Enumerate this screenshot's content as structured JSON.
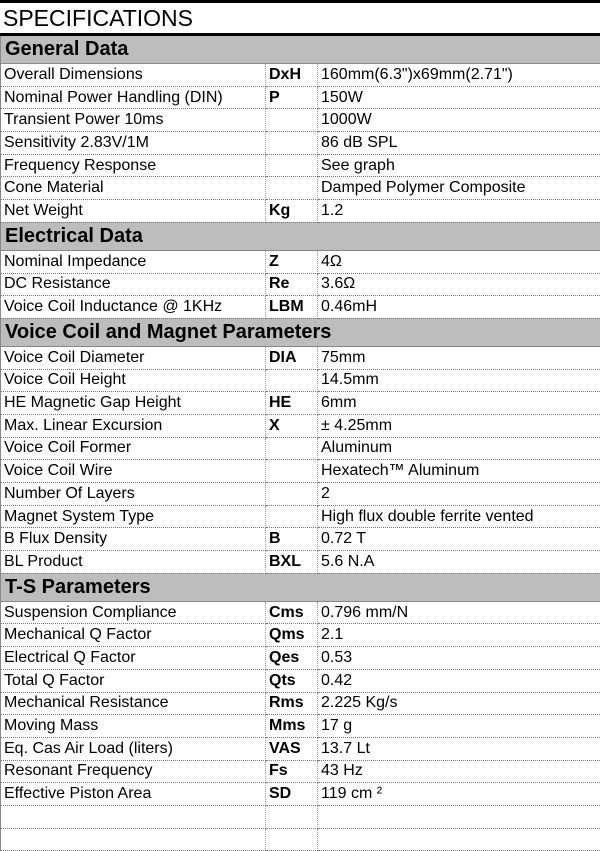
{
  "title": "SPECIFICATIONS",
  "sections": [
    {
      "heading": "General Data",
      "rows": [
        [
          "Overall Dimensions",
          "DxH",
          "160mm(6.3\")x69mm(2.71\")"
        ],
        [
          "Nominal Power Handling (DIN)",
          "P",
          "150W"
        ],
        [
          "Transient Power 10ms",
          "",
          "1000W"
        ],
        [
          "Sensitivity 2.83V/1M",
          "",
          "86 dB SPL"
        ],
        [
          "Frequency Response",
          "",
          "See graph"
        ],
        [
          "Cone Material",
          "",
          "Damped Polymer Composite"
        ],
        [
          "Net Weight",
          "Kg",
          "1.2"
        ]
      ]
    },
    {
      "heading": "Electrical Data",
      "rows": [
        [
          "Nominal Impedance",
          "Z",
          "4Ω"
        ],
        [
          "DC Resistance",
          "Re",
          "3.6Ω"
        ],
        [
          "Voice Coil Inductance @ 1KHz",
          "LBM",
          "0.46mH"
        ]
      ]
    },
    {
      "heading": "Voice Coil and Magnet Parameters",
      "rows": [
        [
          "Voice Coil Diameter",
          "DIA",
          "75mm"
        ],
        [
          "Voice Coil Height",
          "",
          "14.5mm"
        ],
        [
          "HE Magnetic Gap Height",
          "HE",
          "6mm"
        ],
        [
          "Max. Linear Excursion",
          "X",
          "± 4.25mm"
        ],
        [
          "Voice Coil Former",
          "",
          "Aluminum"
        ],
        [
          "Voice Coil Wire",
          "",
          "Hexatech™ Aluminum"
        ],
        [
          "Number Of Layers",
          "",
          "2"
        ],
        [
          "Magnet System Type",
          "",
          "High flux double ferrite vented"
        ],
        [
          "B Flux Density",
          "B",
          "0.72 T"
        ],
        [
          "BL Product",
          "BXL",
          "5.6 N.A"
        ]
      ]
    },
    {
      "heading": "T-S Parameters",
      "rows": [
        [
          "Suspension Compliance",
          "Cms",
          "0.796 mm/N"
        ],
        [
          "Mechanical Q Factor",
          "Qms",
          "2.1"
        ],
        [
          "Electrical Q Factor",
          "Qes",
          "0.53"
        ],
        [
          "Total Q Factor",
          "Qts",
          "0.42"
        ],
        [
          "Mechanical Resistance",
          "Rms",
          "2.225 Kg/s"
        ],
        [
          "Moving Mass",
          "Mms",
          "17 g"
        ],
        [
          "Eq. Cas Air Load (liters)",
          "VAS",
          "13.7 Lt"
        ],
        [
          "Resonant Frequency",
          "Fs",
          "43 Hz"
        ],
        [
          "Effective Piston Area",
          "SD",
          "119 cm ²"
        ],
        [
          "",
          "",
          ""
        ],
        [
          "",
          "",
          ""
        ]
      ]
    }
  ]
}
